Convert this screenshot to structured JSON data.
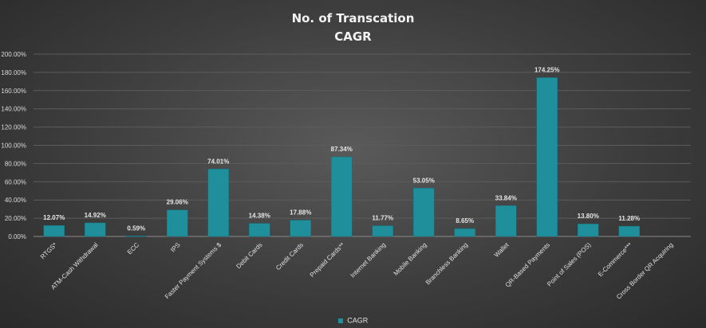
{
  "chart_data": {
    "type": "bar",
    "title_lines": [
      "No. of Transcation",
      "CAGR"
    ],
    "categories": [
      "RTGS*",
      "ATM-Cash Withdrawal",
      "ECC",
      "IPS",
      "Faster Payment Systems $",
      "Debit Cards",
      "Credit Cards",
      "Prepaid Cards**",
      "Internet Banking",
      "Mobile Banking",
      "Branchless Banking",
      "Wallet",
      "QR-Based Payments",
      "Point of Sales (POS)",
      "E-Commerce***",
      "Cross Border QR Acquiring"
    ],
    "series": [
      {
        "name": "CAGR",
        "values": [
          12.07,
          14.92,
          0.59,
          29.06,
          74.01,
          14.38,
          17.88,
          87.34,
          11.77,
          53.05,
          8.65,
          33.84,
          174.25,
          13.8,
          11.28,
          null
        ],
        "labels": [
          "12.07%",
          "14.92%",
          "0.59%",
          "29.06%",
          "74.01%",
          "14.38%",
          "17.88%",
          "87.34%",
          "11.77%",
          "53.05%",
          "8.65%",
          "33.84%",
          "174.25%",
          "13.80%",
          "11.28%",
          ""
        ],
        "color": "#1f8f9c"
      }
    ],
    "yticks": [
      "0.00%",
      "20.00%",
      "40.00%",
      "60.00%",
      "80.00%",
      "100.00%",
      "120.00%",
      "140.00%",
      "160.00%",
      "180.00%",
      "200.00%"
    ],
    "ylim": [
      0,
      200
    ],
    "grid": true,
    "legend_position": "bottom"
  }
}
